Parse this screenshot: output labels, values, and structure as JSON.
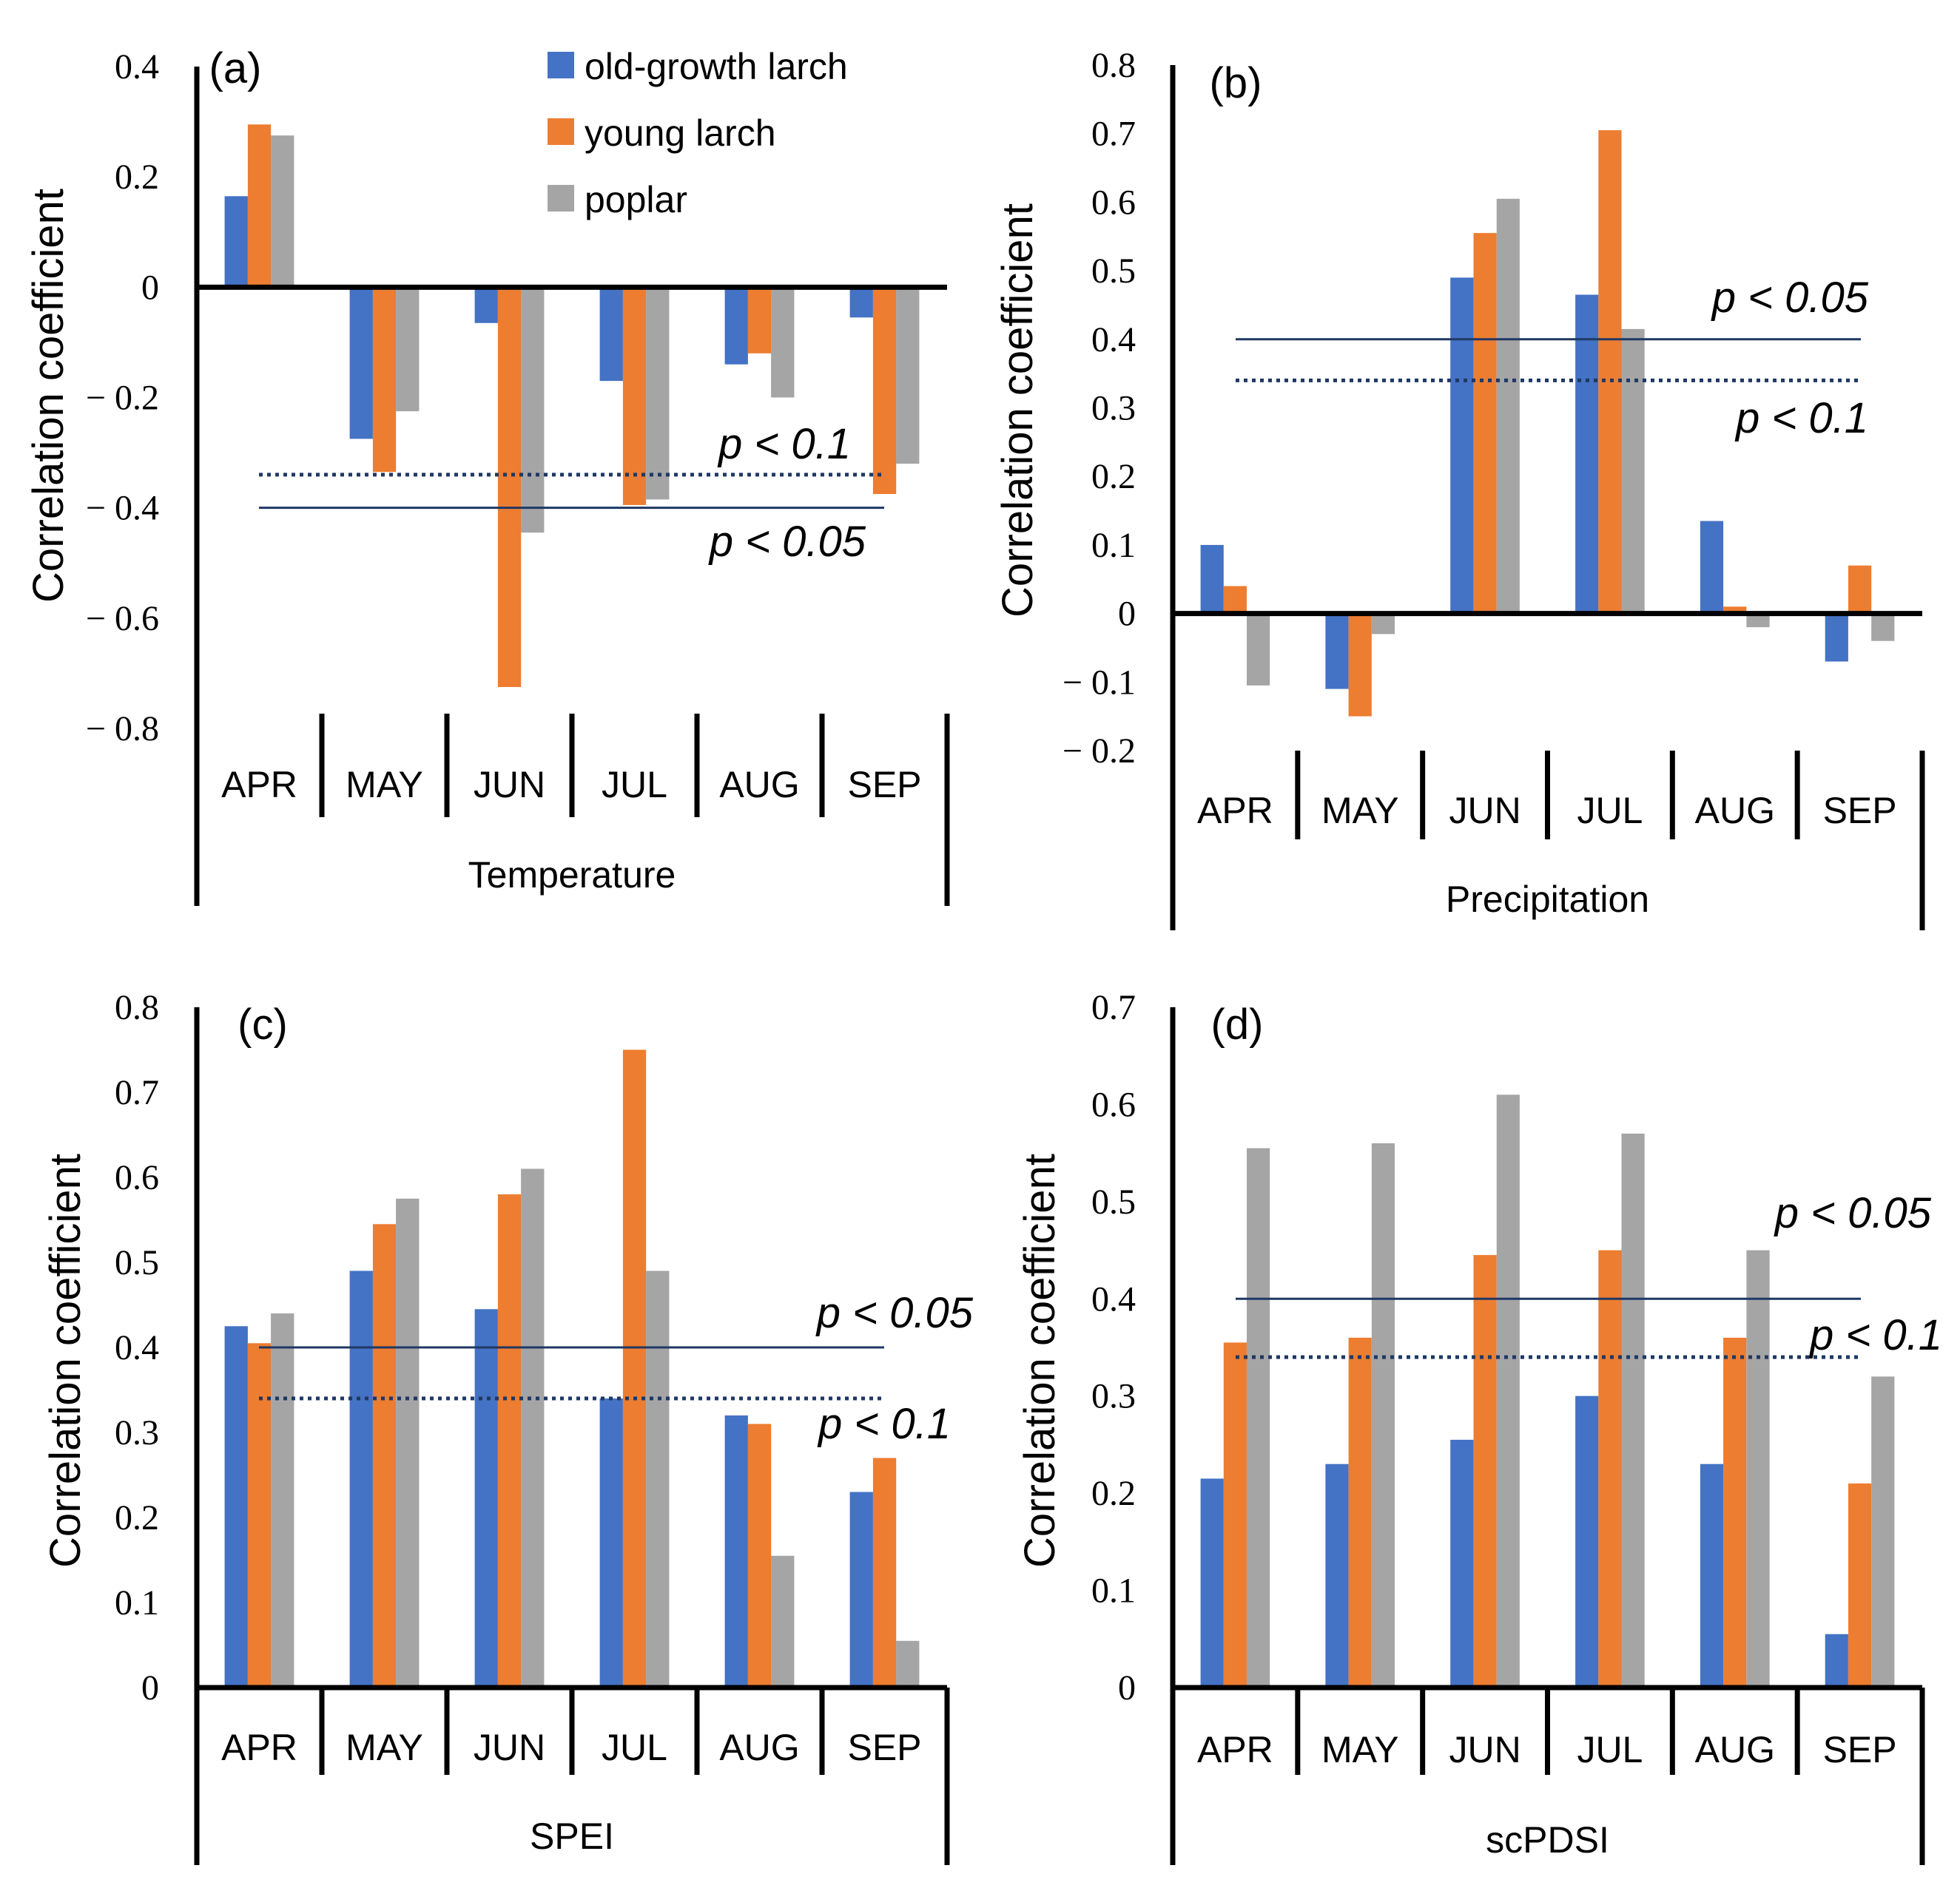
{
  "legend": {
    "entries": [
      {
        "name": "old-growth larch",
        "color": "#4472C4"
      },
      {
        "name": "young larch",
        "color": "#ED7D31"
      },
      {
        "name": "poplar",
        "color": "#A5A5A5"
      }
    ]
  },
  "axis_line_color": "#000000",
  "sig_line_color": "#1F3864",
  "chart_data": [
    {
      "type": "bar",
      "panel_label": "(a)",
      "xlabel": "Temperature",
      "ylabel": "Correlation coefficient",
      "categories": [
        "APR",
        "MAY",
        "JUN",
        "JUL",
        "AUG",
        "SEP"
      ],
      "ylim": [
        -0.8,
        0.4
      ],
      "yticks": [
        -0.8,
        -0.6,
        -0.4,
        -0.2,
        0,
        0.2,
        0.4
      ],
      "ytick_labels": [
        "− 0.8",
        "− 0.6",
        "− 0.4",
        "− 0.2",
        "0",
        "0.2",
        "0.4"
      ],
      "series": [
        {
          "name": "old-growth larch",
          "values": [
            0.165,
            -0.275,
            -0.065,
            -0.17,
            -0.14,
            -0.055
          ]
        },
        {
          "name": "young larch",
          "values": [
            0.295,
            -0.335,
            -0.725,
            -0.395,
            -0.12,
            -0.375
          ]
        },
        {
          "name": "poplar",
          "values": [
            0.275,
            -0.225,
            -0.445,
            -0.385,
            -0.2,
            -0.32
          ]
        }
      ],
      "sig_lines": [
        {
          "value": -0.34,
          "style": "dotted",
          "label": "p < 0.1",
          "label_pos": "above"
        },
        {
          "value": -0.4,
          "style": "solid",
          "label": "p < 0.05",
          "label_pos": "below"
        }
      ]
    },
    {
      "type": "bar",
      "panel_label": "(b)",
      "xlabel": "Precipitation",
      "ylabel": "Correlation coefficient",
      "categories": [
        "APR",
        "MAY",
        "JUN",
        "JUL",
        "AUG",
        "SEP"
      ],
      "ylim": [
        -0.2,
        0.8
      ],
      "yticks": [
        -0.2,
        -0.1,
        0,
        0.1,
        0.2,
        0.3,
        0.4,
        0.5,
        0.6,
        0.7,
        0.8
      ],
      "ytick_labels": [
        "− 0.2",
        "− 0.1",
        "0",
        "0.1",
        "0.2",
        "0.3",
        "0.4",
        "0.5",
        "0.6",
        "0.7",
        "0.8"
      ],
      "series": [
        {
          "name": "old-growth larch",
          "values": [
            0.1,
            -0.11,
            0.49,
            0.465,
            0.135,
            -0.07
          ]
        },
        {
          "name": "young larch",
          "values": [
            0.04,
            -0.15,
            0.555,
            0.705,
            0.01,
            0.07
          ]
        },
        {
          "name": "poplar",
          "values": [
            -0.105,
            -0.03,
            0.605,
            0.415,
            -0.02,
            -0.04
          ]
        }
      ],
      "sig_lines": [
        {
          "value": 0.4,
          "style": "solid",
          "label": "p < 0.05",
          "label_pos": "above"
        },
        {
          "value": 0.34,
          "style": "dotted",
          "label": "p < 0.1",
          "label_pos": "below"
        }
      ]
    },
    {
      "type": "bar",
      "panel_label": "(c)",
      "xlabel": "SPEI",
      "ylabel": "Correlation coefficient",
      "categories": [
        "APR",
        "MAY",
        "JUN",
        "JUL",
        "AUG",
        "SEP"
      ],
      "ylim": [
        0,
        0.8
      ],
      "yticks": [
        0,
        0.1,
        0.2,
        0.3,
        0.4,
        0.5,
        0.6,
        0.7,
        0.8
      ],
      "ytick_labels": [
        "0",
        "0.1",
        "0.2",
        "0.3",
        "0.4",
        "0.5",
        "0.6",
        "0.7",
        "0.8"
      ],
      "series": [
        {
          "name": "old-growth larch",
          "values": [
            0.425,
            0.49,
            0.445,
            0.34,
            0.32,
            0.23
          ]
        },
        {
          "name": "young larch",
          "values": [
            0.405,
            0.545,
            0.58,
            0.75,
            0.31,
            0.27
          ]
        },
        {
          "name": "poplar",
          "values": [
            0.44,
            0.575,
            0.61,
            0.49,
            0.155,
            0.055
          ]
        }
      ],
      "sig_lines": [
        {
          "value": 0.4,
          "style": "solid",
          "label": "p < 0.05",
          "label_pos": "above"
        },
        {
          "value": 0.34,
          "style": "dotted",
          "label": "p < 0.1",
          "label_pos": "below"
        }
      ]
    },
    {
      "type": "bar",
      "panel_label": "(d)",
      "xlabel": "scPDSI",
      "ylabel": "Correlation coefficient",
      "categories": [
        "APR",
        "MAY",
        "JUN",
        "JUL",
        "AUG",
        "SEP"
      ],
      "ylim": [
        0,
        0.7
      ],
      "yticks": [
        0,
        0.1,
        0.2,
        0.3,
        0.4,
        0.5,
        0.6,
        0.7
      ],
      "ytick_labels": [
        "0",
        "0.1",
        "0.2",
        "0.3",
        "0.4",
        "0.5",
        "0.6",
        "0.7"
      ],
      "series": [
        {
          "name": "old-growth larch",
          "values": [
            0.215,
            0.23,
            0.255,
            0.3,
            0.23,
            0.055
          ]
        },
        {
          "name": "young larch",
          "values": [
            0.355,
            0.36,
            0.445,
            0.45,
            0.36,
            0.21
          ]
        },
        {
          "name": "poplar",
          "values": [
            0.555,
            0.56,
            0.61,
            0.57,
            0.45,
            0.32
          ]
        }
      ],
      "sig_lines": [
        {
          "value": 0.4,
          "style": "solid",
          "label": "p < 0.05",
          "label_pos": "above"
        },
        {
          "value": 0.34,
          "style": "dotted",
          "label": "p < 0.1",
          "label_pos": "above"
        }
      ]
    }
  ]
}
